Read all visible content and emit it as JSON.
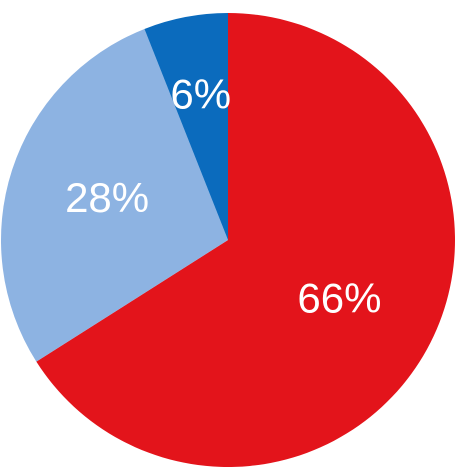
{
  "chart_data": {
    "type": "pie",
    "values": [
      66,
      28,
      6
    ],
    "value_labels": [
      "66%",
      "28%",
      "6%"
    ],
    "colors": [
      "#e3141b",
      "#8db3e2",
      "#0b6bbd"
    ]
  }
}
